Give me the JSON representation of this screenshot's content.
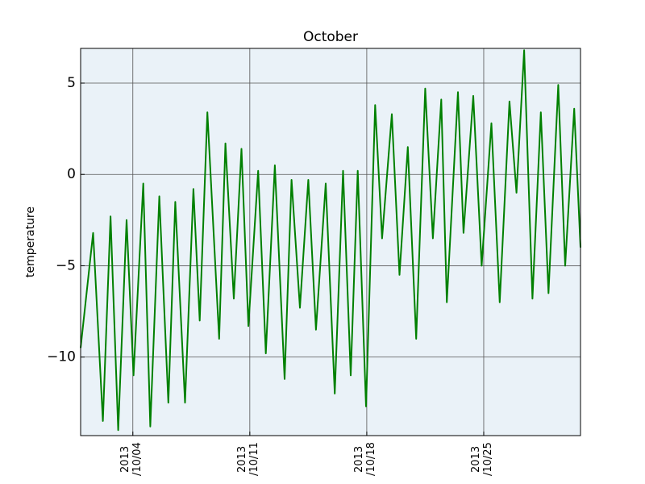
{
  "chart_data": {
    "type": "line",
    "title": "October",
    "y_label": "temperature",
    "x": [
      "2013-09-30T21:00",
      "2013-10-01T15:00",
      "2013-10-02T05:00",
      "2013-10-02T16:00",
      "2013-10-03T03:00",
      "2013-10-03T15:00",
      "2013-10-04T01:00",
      "2013-10-04T15:00",
      "2013-10-05T01:00",
      "2013-10-05T14:00",
      "2013-10-06T03:00",
      "2013-10-06T13:00",
      "2013-10-07T03:00",
      "2013-10-07T15:00",
      "2013-10-08T00:00",
      "2013-10-08T11:00",
      "2013-10-09T04:00",
      "2013-10-09T13:00",
      "2013-10-10T01:00",
      "2013-10-10T12:00",
      "2013-10-10T22:00",
      "2013-10-11T12:00",
      "2013-10-11T23:00",
      "2013-10-12T12:00",
      "2013-10-13T02:00",
      "2013-10-13T12:00",
      "2013-10-14T00:00",
      "2013-10-14T12:00",
      "2013-10-14T23:00",
      "2013-10-15T13:00",
      "2013-10-16T02:00",
      "2013-10-16T14:00",
      "2013-10-17T01:00",
      "2013-10-17T11:00",
      "2013-10-17T23:00",
      "2013-10-18T12:00",
      "2013-10-18T22:00",
      "2013-10-19T12:00",
      "2013-10-19T23:00",
      "2013-10-20T11:00",
      "2013-10-20T23:00",
      "2013-10-21T12:00",
      "2013-10-21T23:00",
      "2013-10-22T11:00",
      "2013-10-22T19:00",
      "2013-10-23T11:00",
      "2013-10-23T19:00",
      "2013-10-24T09:00",
      "2013-10-24T21:00",
      "2013-10-25T11:00",
      "2013-10-25T23:00",
      "2013-10-26T13:00",
      "2013-10-26T23:00",
      "2013-10-27T10:00",
      "2013-10-27T22:00",
      "2013-10-28T10:00",
      "2013-10-28T21:00",
      "2013-10-29T11:00",
      "2013-10-29T21:00",
      "2013-10-30T10:00",
      "2013-10-30T19:00"
    ],
    "series": [
      {
        "name": "temperature",
        "color": "#008000",
        "values": [
          -9.5,
          -3.2,
          -13.5,
          -2.3,
          -14,
          -2.5,
          -11,
          -0.5,
          -13.8,
          -1.2,
          -12.5,
          -1.5,
          -12.5,
          -0.8,
          -8,
          3.4,
          -9,
          1.7,
          -6.8,
          1.4,
          -8.3,
          0.2,
          -9.8,
          0.5,
          -11.2,
          -0.3,
          -7.3,
          -0.3,
          -8.5,
          -0.5,
          -12,
          0.2,
          -11,
          0.2,
          -12.7,
          3.8,
          -3.5,
          3.3,
          -5.5,
          1.5,
          -9,
          4.7,
          -3.5,
          4.1,
          -7,
          4.5,
          -3.2,
          4.3,
          -5,
          2.8,
          -7,
          4,
          -1,
          6.8,
          -6.8,
          3.4,
          -6.5,
          4.9,
          -5,
          3.6,
          -4
        ]
      }
    ],
    "xlim": [
      "2013-09-30T21:00",
      "2013-10-30T19:00"
    ],
    "xticks": [
      {
        "value": "2013-10-04",
        "label": "2013\n/10/04"
      },
      {
        "value": "2013-10-11",
        "label": "2013\n/10/11"
      },
      {
        "value": "2013-10-18",
        "label": "2013\n/10/18"
      },
      {
        "value": "2013-10-25",
        "label": "2013\n/10/25"
      }
    ],
    "ylim": [
      -14.3,
      6.9
    ],
    "yticks": [
      {
        "value": -10,
        "label": "−10"
      },
      {
        "value": -5,
        "label": "−5"
      },
      0,
      5
    ],
    "grid": true
  }
}
